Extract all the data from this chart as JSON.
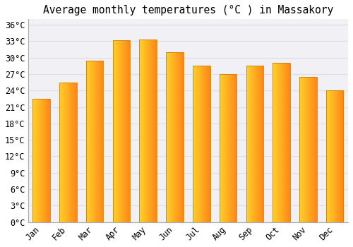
{
  "title": "Average monthly temperatures (°C ) in Massakory",
  "months": [
    "Jan",
    "Feb",
    "Mar",
    "Apr",
    "May",
    "Jun",
    "Jul",
    "Aug",
    "Sep",
    "Oct",
    "Nov",
    "Dec"
  ],
  "values": [
    22.5,
    25.5,
    29.5,
    33.2,
    33.3,
    31.0,
    28.5,
    27.0,
    28.5,
    29.0,
    26.5,
    24.0
  ],
  "bar_color_main": "#FFA500",
  "bar_color_light": "#FFD060",
  "bar_edge_color": "#CC8000",
  "plot_bg_color": "#F0F0F5",
  "fig_bg_color": "#FFFFFF",
  "grid_color": "#DDDDEE",
  "ytick_step": 3,
  "ymin": 0,
  "ymax": 37,
  "title_fontsize": 10.5,
  "tick_fontsize": 8.5,
  "tick_font_family": "monospace"
}
